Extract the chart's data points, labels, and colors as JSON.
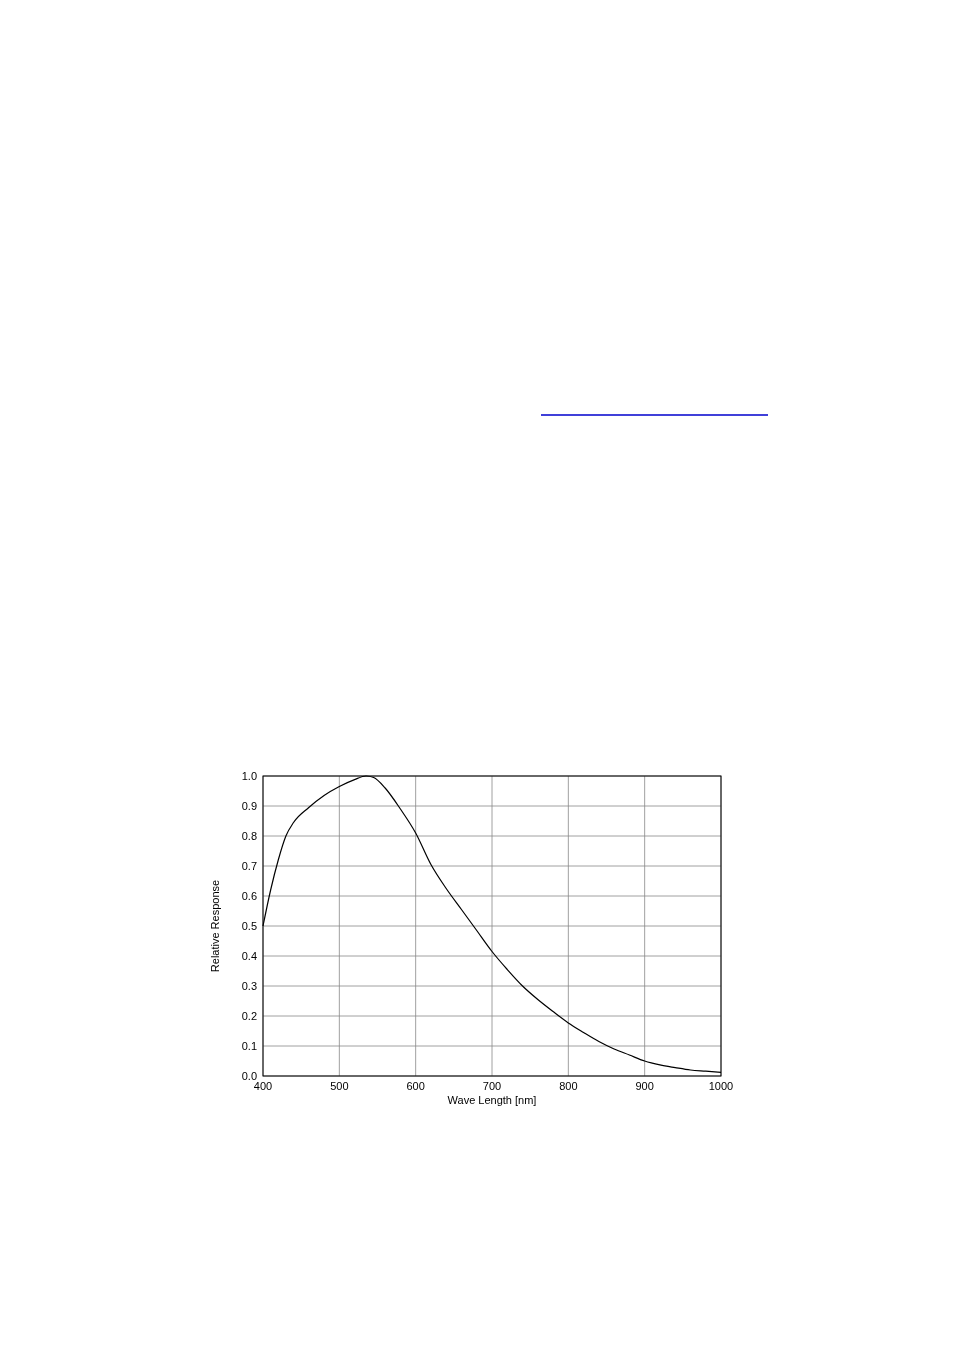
{
  "chart_data": {
    "type": "line",
    "xlabel": "Wave Length [nm]",
    "ylabel": "Relative Response",
    "x": [
      400,
      410,
      420,
      430,
      440,
      460,
      480,
      500,
      520,
      535,
      545,
      560,
      580,
      600,
      620,
      640,
      660,
      680,
      700,
      720,
      740,
      760,
      780,
      800,
      820,
      840,
      860,
      880,
      900,
      920,
      940,
      960,
      980,
      1000
    ],
    "series": [
      {
        "color": "#000000",
        "values": [
          0.5,
          0.62,
          0.72,
          0.8,
          0.845,
          0.895,
          0.935,
          0.965,
          0.988,
          1.0,
          0.995,
          0.96,
          0.89,
          0.81,
          0.705,
          0.625,
          0.555,
          0.485,
          0.415,
          0.355,
          0.3,
          0.255,
          0.215,
          0.177,
          0.145,
          0.115,
          0.09,
          0.07,
          0.05,
          0.037,
          0.028,
          0.02,
          0.016,
          0.012
        ]
      }
    ],
    "xlim": [
      400,
      1000
    ],
    "xticks": [
      400,
      500,
      600,
      700,
      800,
      900,
      1000
    ],
    "ylim": [
      0,
      1
    ],
    "yticks": [
      {
        "value": 0,
        "label": "0.0"
      },
      {
        "value": 0.1,
        "label": "0.1"
      },
      {
        "value": 0.2,
        "label": "0.2"
      },
      {
        "value": 0.3,
        "label": "0.3"
      },
      {
        "value": 0.4,
        "label": "0.4"
      },
      {
        "value": 0.5,
        "label": "0.5"
      },
      {
        "value": 0.6,
        "label": "0.6"
      },
      {
        "value": 0.7,
        "label": "0.7"
      },
      {
        "value": 0.8,
        "label": "0.8"
      },
      {
        "value": 0.9,
        "label": "0.9"
      },
      {
        "value": 1,
        "label": "1.0"
      }
    ],
    "grid": true,
    "marker": "none",
    "line_style": "solid"
  }
}
